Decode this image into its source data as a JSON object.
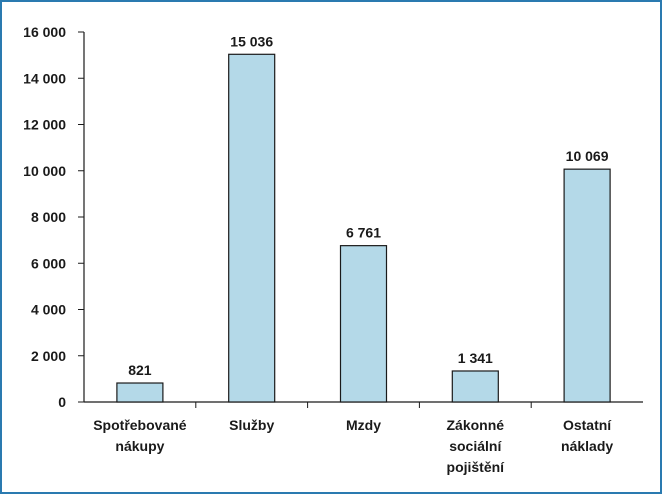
{
  "chart_data": {
    "type": "bar",
    "categories": [
      [
        "Spotřebované",
        "nákupy"
      ],
      [
        "Služby"
      ],
      [
        "Mzdy"
      ],
      [
        "Zákonné",
        "sociální",
        "pojištění"
      ],
      [
        "Ostatní",
        "náklady"
      ]
    ],
    "values": [
      821,
      15036,
      6761,
      1341,
      10069
    ],
    "value_labels": [
      "821",
      "15 036",
      "6 761",
      "1 341",
      "10 069"
    ],
    "ylim": [
      0,
      16000
    ],
    "yticks": [
      0,
      2000,
      4000,
      6000,
      8000,
      10000,
      12000,
      14000,
      16000
    ],
    "ytick_labels": [
      "0",
      "2 000",
      "4 000",
      "6 000",
      "8 000",
      "10 000",
      "12 000",
      "14 000",
      "16 000"
    ],
    "grid": false,
    "legend": "none",
    "title": "",
    "xlabel": "",
    "ylabel": "",
    "colors": {
      "bar_fill": "#b4d9e8",
      "bar_stroke": "#1a1a1a",
      "frame": "#2a7ab0",
      "axis": "#1a1a1a"
    }
  }
}
